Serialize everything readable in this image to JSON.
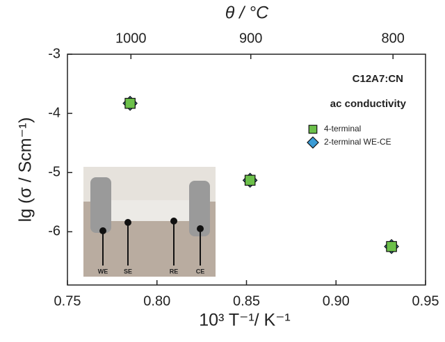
{
  "chart_data": {
    "type": "scatter",
    "xlabel": "10³ T⁻¹/ K⁻¹",
    "ylabel": "lg (σ / Scm⁻¹)",
    "x2label": "θ / °C",
    "xlim": [
      0.75,
      0.95
    ],
    "xticks": [
      0.75,
      {
        "value": 0.8,
        "label": "0.80"
      },
      0.85,
      {
        "value": 0.9,
        "label": "0.90"
      },
      0.95
    ],
    "ylim": [
      -6.9,
      -3
    ],
    "yticks": [
      -3,
      -4,
      -5,
      -6
    ],
    "x2scale": "reciprocal-kelvin",
    "x2ticks": [
      1000,
      900,
      800
    ],
    "annotations": [
      "C12A7:CN",
      "ac conductivity"
    ],
    "inset_labels": [
      "WE",
      "SE",
      "RE",
      "CE"
    ],
    "series": [
      {
        "name": "2-terminal WE-CE",
        "color": "#3a9bd5",
        "marker": "diamond",
        "x": [
          0.785,
          0.852,
          0.931
        ],
        "values": [
          -3.83,
          -5.13,
          -6.25
        ]
      },
      {
        "name": "4-terminal",
        "color": "#6cc04a",
        "marker": "square",
        "x": [
          0.785,
          0.852,
          0.931
        ],
        "values": [
          -3.83,
          -5.13,
          -6.25
        ]
      }
    ]
  }
}
